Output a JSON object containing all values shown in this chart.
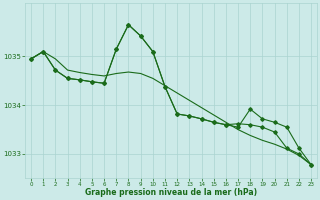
{
  "title": "Graphe pression niveau de la mer (hPa)",
  "bg_color": "#cceae8",
  "grid_color": "#aad4d0",
  "line_color": "#1a6b1a",
  "marker_color": "#1a6b1a",
  "xlim": [
    -0.5,
    23.5
  ],
  "ylim": [
    1032.5,
    1036.1
  ],
  "yticks": [
    1033,
    1034,
    1035
  ],
  "xticks": [
    0,
    1,
    2,
    3,
    4,
    5,
    6,
    7,
    8,
    9,
    10,
    11,
    12,
    13,
    14,
    15,
    16,
    17,
    18,
    19,
    20,
    21,
    22,
    23
  ],
  "series1": [
    1034.95,
    1035.1,
    1034.95,
    1034.72,
    1034.67,
    1034.63,
    1034.6,
    1034.65,
    1034.68,
    1034.65,
    1034.55,
    1034.4,
    1034.25,
    1034.1,
    1033.95,
    1033.8,
    1033.65,
    1033.5,
    1033.38,
    1033.28,
    1033.2,
    1033.1,
    1032.97,
    1032.78
  ],
  "series2_x": [
    0,
    1,
    2,
    3,
    4,
    5,
    6,
    7,
    8,
    9,
    10,
    11,
    12,
    13,
    14,
    15,
    16,
    17,
    18,
    19,
    20,
    21,
    22,
    23
  ],
  "series2": [
    1034.95,
    1035.1,
    1034.72,
    1034.55,
    1034.52,
    1034.48,
    1034.45,
    1035.15,
    1035.65,
    1035.42,
    1035.1,
    1034.38,
    1033.82,
    1033.78,
    1033.72,
    1033.65,
    1033.6,
    1033.62,
    1033.6,
    1033.55,
    1033.45,
    1033.12,
    1033.0,
    1032.78
  ],
  "series3_x": [
    0,
    1,
    2,
    3,
    4,
    5,
    6,
    7,
    8,
    9,
    10,
    11,
    12,
    13,
    14,
    15,
    16,
    17,
    18,
    19,
    20,
    21,
    22,
    23
  ],
  "series3": [
    1034.95,
    1035.1,
    1034.72,
    1034.55,
    1034.52,
    1034.48,
    1034.45,
    1035.15,
    1035.65,
    1035.42,
    1035.1,
    1034.38,
    1033.82,
    1033.78,
    1033.72,
    1033.65,
    1033.6,
    1033.55,
    1033.92,
    1033.72,
    1033.65,
    1033.55,
    1033.12,
    1032.78
  ]
}
